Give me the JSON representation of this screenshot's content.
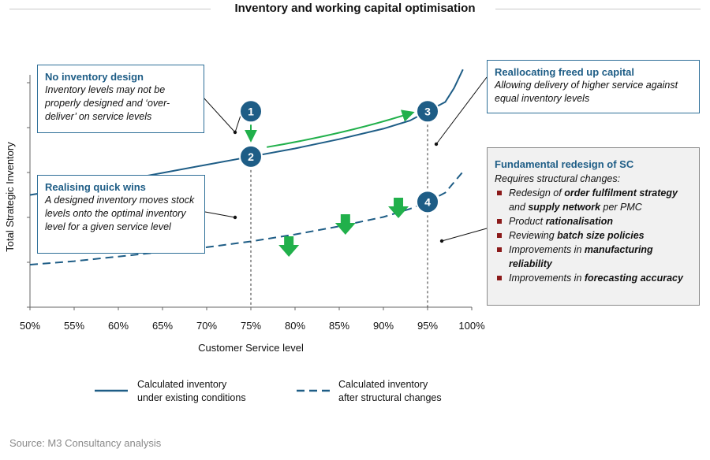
{
  "title": "Inventory and working capital optimisation",
  "source": "Source: M3 Consultancy analysis",
  "colors": {
    "primary": "#1e5d86",
    "line": "#2e6f98",
    "arrow": "#21b04b",
    "bullet": "#8b1a1a",
    "box_bg": "#f1f1f1"
  },
  "chart_data": {
    "type": "line",
    "xlabel": "Customer Service level",
    "ylabel": "Total Strategic Inventory",
    "x_ticks": [
      "50%",
      "55%",
      "60%",
      "65%",
      "70%",
      "75%",
      "80%",
      "85%",
      "90%",
      "95%",
      "100%"
    ],
    "xlim": [
      50,
      100
    ],
    "grid": false,
    "legend_position": "bottom",
    "series": [
      {
        "name": "Calculated inventory under existing conditions",
        "style": "solid",
        "x": [
          50,
          55,
          60,
          65,
          70,
          75,
          80,
          85,
          90,
          93,
          95,
          97,
          98,
          99
        ],
        "y": [
          10,
          13,
          16,
          19.5,
          23,
          26.5,
          30,
          34,
          38.5,
          42,
          46,
          50,
          56,
          64
        ]
      },
      {
        "name": "Calculated inventory after structural changes",
        "style": "dashed",
        "x": [
          50,
          55,
          60,
          65,
          70,
          75,
          80,
          85,
          90,
          93,
          95,
          97,
          99
        ],
        "y": [
          -20,
          -18.5,
          -16.5,
          -14.5,
          -12.5,
          -10,
          -7,
          -3.5,
          0.5,
          4,
          7,
          11,
          20
        ]
      }
    ],
    "markers": [
      {
        "label": "1",
        "x": 75,
        "y": 46
      },
      {
        "label": "2",
        "x": 75,
        "y": 26.5
      },
      {
        "label": "3",
        "x": 95,
        "y": 46
      },
      {
        "label": "4",
        "x": 95,
        "y": 7
      }
    ]
  },
  "legend": {
    "existing_line1": "Calculated inventory",
    "existing_line2": "under existing conditions",
    "after_line1": "Calculated inventory",
    "after_line2": "after structural changes"
  },
  "callouts": {
    "no_inventory": {
      "heading": "No inventory design",
      "body": "Inventory levels may not be properly designed and ‘over-deliver’ on service levels"
    },
    "quick_wins": {
      "heading": "Realising quick wins",
      "body": "A designed inventory moves stock levels onto the optimal inventory level for a given service level"
    },
    "reallocating": {
      "heading": "Reallocating freed up capital",
      "body": "Allowing delivery of higher service against equal inventory levels"
    },
    "redesign": {
      "heading": "Fundamental redesign of SC",
      "intro": "Requires structural changes:",
      "items": [
        {
          "pre": "Redesign of ",
          "bold": "order fulfilment strategy",
          "post": ""
        },
        {
          "pre": "and ",
          "bold": "supply network",
          "post": " per PMC"
        },
        {
          "pre": "Product ",
          "bold": "rationalisation",
          "post": ""
        },
        {
          "pre": "Reviewing ",
          "bold": "batch size policies",
          "post": ""
        },
        {
          "pre": "Improvements in ",
          "bold": "manufacturing reliability",
          "post": ""
        },
        {
          "pre": "Improvements in ",
          "bold": "forecasting accuracy",
          "post": ""
        }
      ]
    }
  }
}
